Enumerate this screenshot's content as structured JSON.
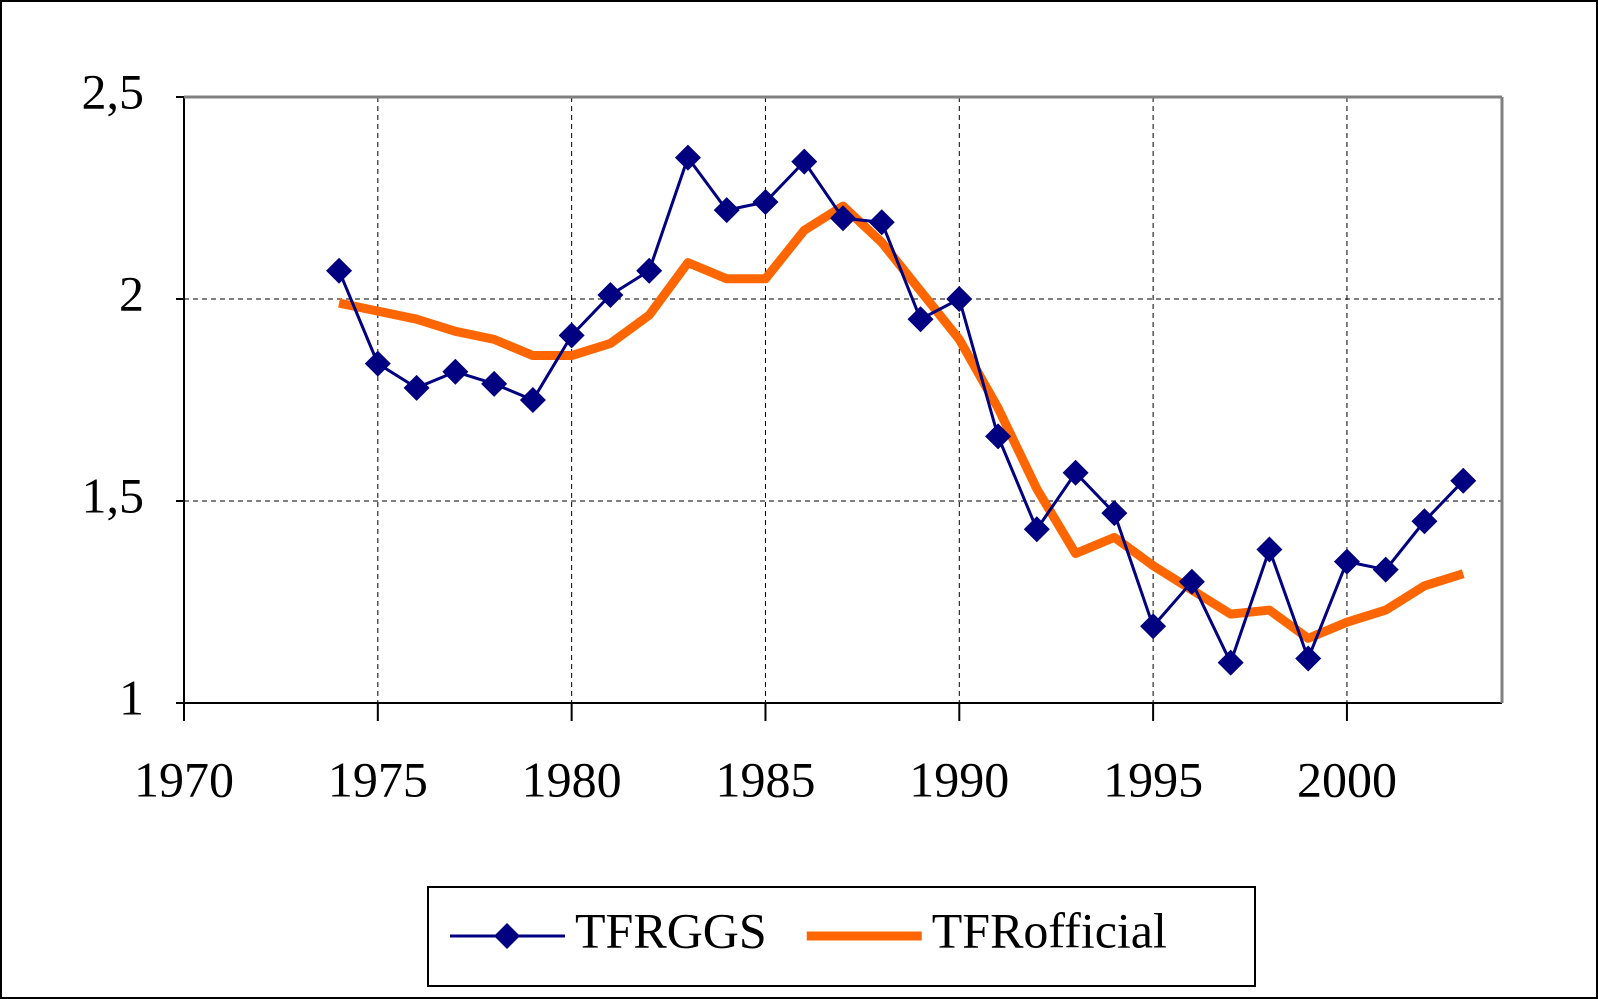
{
  "chart_data": {
    "type": "line",
    "x": [
      1974,
      1975,
      1976,
      1977,
      1978,
      1979,
      1980,
      1981,
      1982,
      1983,
      1984,
      1985,
      1986,
      1987,
      1988,
      1989,
      1990,
      1991,
      1992,
      1993,
      1994,
      1995,
      1996,
      1997,
      1998,
      1999,
      2000,
      2001,
      2002,
      2003
    ],
    "series": [
      {
        "name": "TFRGGS",
        "color": "#000080",
        "marker": "diamond",
        "values": [
          2.07,
          1.84,
          1.78,
          1.82,
          1.79,
          1.75,
          1.91,
          2.01,
          2.07,
          2.35,
          2.22,
          2.24,
          2.34,
          2.2,
          2.19,
          1.95,
          2.0,
          1.66,
          1.43,
          1.57,
          1.47,
          1.19,
          1.3,
          1.1,
          1.38,
          1.11,
          1.35,
          1.33,
          1.45,
          1.55
        ]
      },
      {
        "name": "TFRofficial",
        "color": "#ff6600",
        "values": [
          1.99,
          1.97,
          1.95,
          1.92,
          1.9,
          1.86,
          1.86,
          1.89,
          1.96,
          2.09,
          2.05,
          2.05,
          2.17,
          2.23,
          2.14,
          2.02,
          1.9,
          1.73,
          1.53,
          1.37,
          1.41,
          1.34,
          1.28,
          1.22,
          1.23,
          1.16,
          1.2,
          1.23,
          1.29,
          1.32
        ]
      }
    ],
    "xlim": [
      1970,
      2004
    ],
    "xticks": [
      1970,
      1975,
      1980,
      1985,
      1990,
      1995,
      2000
    ],
    "ylim": [
      1,
      2.5
    ],
    "yticks": [
      {
        "value": 1,
        "label": "1"
      },
      {
        "value": 1.5,
        "label": "1,5"
      },
      {
        "value": 2,
        "label": "2"
      },
      {
        "value": 2.5,
        "label": "2,5"
      }
    ],
    "grid": true,
    "legend": "bottom"
  }
}
